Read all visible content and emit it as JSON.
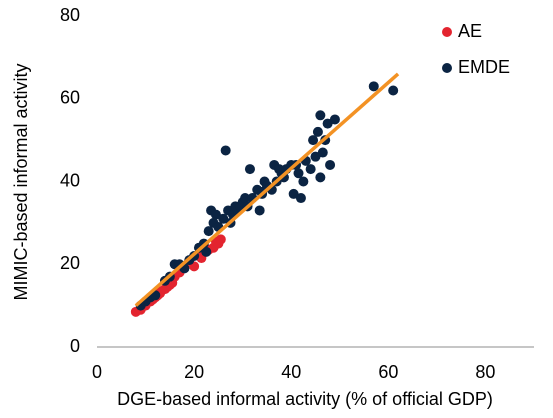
{
  "chart_data": {
    "type": "scatter",
    "x_label": "DGE-based informal activity (% of official GDP)",
    "y_label": "MIMIC-based informal activity",
    "xlim": [
      0,
      90
    ],
    "xticks": [
      0,
      20,
      40,
      60,
      80
    ],
    "ylim": [
      0,
      80
    ],
    "yticks": [
      0,
      20,
      40,
      60,
      80
    ],
    "series": [
      {
        "name": "AE",
        "color": "#e3242f",
        "x": [
          8,
          9,
          10,
          11,
          11.5,
          12,
          12.5,
          13,
          13,
          14,
          14.5,
          15,
          15.5,
          16,
          17,
          18,
          20,
          21,
          21.5,
          22,
          23,
          24,
          24.5,
          25,
          25.5
        ],
        "values": [
          8.5,
          9,
          10,
          11,
          11.5,
          12,
          12.5,
          13.5,
          13,
          14,
          14.5,
          15,
          15.5,
          17,
          18,
          19.5,
          19.5,
          22,
          21.5,
          23,
          23.5,
          24,
          25.5,
          25,
          26
        ]
      },
      {
        "name": "EMDE",
        "color": "#0b2443",
        "x": [
          9,
          10,
          11,
          12,
          14,
          15,
          16,
          17,
          18,
          19,
          20,
          21,
          22,
          22.5,
          23,
          23.5,
          24,
          24.5,
          25,
          26,
          26.5,
          27,
          27.5,
          28,
          28.5,
          29,
          29.5,
          30,
          30.5,
          31,
          31.5,
          32,
          33,
          33.5,
          34,
          34,
          34.5,
          35,
          36,
          36.5,
          37,
          37.5,
          38,
          38.5,
          39,
          40,
          40.5,
          41,
          41.5,
          42,
          42.5,
          43,
          44,
          44.5,
          45,
          45.5,
          46,
          46,
          46.5,
          47,
          47.5,
          48,
          49,
          57,
          61
        ],
        "values": [
          10,
          11,
          12,
          12.5,
          16,
          17,
          20,
          20,
          19,
          21,
          22,
          24,
          25,
          23,
          28,
          33,
          30,
          32,
          29,
          31,
          47.5,
          33,
          30,
          32,
          34,
          33,
          34,
          35,
          36,
          34,
          43,
          36,
          38,
          33,
          37,
          37.5,
          40,
          39,
          38,
          44,
          40,
          43,
          42,
          41,
          43,
          44,
          37,
          44,
          42,
          36,
          40,
          45,
          43,
          50,
          46,
          52,
          56,
          41,
          47,
          50,
          54,
          44,
          55,
          63,
          62
        ]
      }
    ],
    "trend_line": {
      "color": "#f39224",
      "x": [
        8,
        62
      ],
      "values": [
        10,
        66
      ]
    },
    "legend": "top-right"
  }
}
